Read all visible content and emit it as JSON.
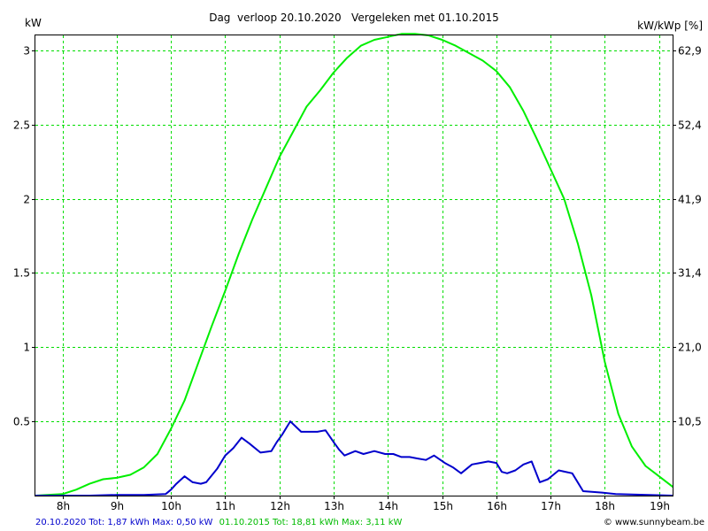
{
  "chart_data": {
    "type": "line",
    "title": "Dag  verloop 20.10.2020   Vergeleken met 01.10.2015",
    "ylabel_left": "kW",
    "ylabel_right": "kW/kWp [%]",
    "xlim": [
      7.5,
      19.25
    ],
    "ylim": [
      0,
      3.1
    ],
    "grid": true,
    "x_ticks": [
      8,
      9,
      10,
      11,
      12,
      13,
      14,
      15,
      16,
      17,
      18,
      19
    ],
    "x_tick_labels": [
      "8h",
      "9h",
      "10h",
      "11h",
      "12h",
      "13h",
      "14h",
      "15h",
      "16h",
      "17h",
      "18h",
      "19h"
    ],
    "y_ticks": [
      0.5,
      1,
      1.5,
      2,
      2.5,
      3
    ],
    "y_tick_labels": [
      "0.5",
      "1",
      "1.5",
      "2",
      "2.5",
      "3"
    ],
    "y_right_tick_labels": [
      "10,5",
      "21,0",
      "31,4",
      "41,9",
      "52,4",
      "62,9"
    ],
    "series": [
      {
        "name": "20.10.2020",
        "color": "#0000cc",
        "x": [
          7.5,
          8.5,
          9.0,
          9.5,
          9.9,
          10.0,
          10.1,
          10.25,
          10.4,
          10.55,
          10.65,
          10.85,
          11.0,
          11.15,
          11.3,
          11.45,
          11.65,
          11.85,
          11.95,
          12.05,
          12.2,
          12.4,
          12.6,
          12.7,
          12.85,
          13.0,
          13.1,
          13.2,
          13.4,
          13.55,
          13.75,
          13.95,
          14.1,
          14.25,
          14.4,
          14.55,
          14.7,
          14.85,
          15.05,
          15.2,
          15.35,
          15.55,
          15.7,
          15.85,
          16.0,
          16.1,
          16.2,
          16.35,
          16.5,
          16.65,
          16.8,
          16.95,
          17.15,
          17.4,
          17.6,
          17.95,
          18.2,
          19.25
        ],
        "y": [
          0,
          0,
          0.005,
          0.005,
          0.01,
          0.04,
          0.08,
          0.13,
          0.09,
          0.08,
          0.09,
          0.18,
          0.27,
          0.32,
          0.39,
          0.35,
          0.29,
          0.3,
          0.36,
          0.41,
          0.5,
          0.43,
          0.43,
          0.43,
          0.44,
          0.36,
          0.31,
          0.27,
          0.3,
          0.28,
          0.3,
          0.28,
          0.28,
          0.26,
          0.26,
          0.25,
          0.24,
          0.27,
          0.22,
          0.19,
          0.15,
          0.21,
          0.22,
          0.23,
          0.22,
          0.16,
          0.15,
          0.17,
          0.21,
          0.23,
          0.09,
          0.11,
          0.17,
          0.15,
          0.03,
          0.02,
          0.01,
          0
        ]
      },
      {
        "name": "01.10.2015",
        "color": "#00ee00",
        "x": [
          7.5,
          8.0,
          8.25,
          8.5,
          8.75,
          9.0,
          9.25,
          9.5,
          9.75,
          10.0,
          10.25,
          10.5,
          10.75,
          11.0,
          11.25,
          11.5,
          11.75,
          12.0,
          12.25,
          12.5,
          12.75,
          13.0,
          13.25,
          13.5,
          13.75,
          14.0,
          14.25,
          14.5,
          14.75,
          15.0,
          15.25,
          15.5,
          15.75,
          16.0,
          16.25,
          16.5,
          16.75,
          17.0,
          17.25,
          17.5,
          17.75,
          18.0,
          18.25,
          18.5,
          18.75,
          19.0,
          19.25
        ],
        "y": [
          0,
          0.01,
          0.04,
          0.08,
          0.11,
          0.12,
          0.14,
          0.19,
          0.28,
          0.45,
          0.64,
          0.89,
          1.14,
          1.38,
          1.63,
          1.86,
          2.07,
          2.28,
          2.45,
          2.62,
          2.73,
          2.85,
          2.95,
          3.03,
          3.07,
          3.09,
          3.11,
          3.11,
          3.1,
          3.07,
          3.03,
          2.98,
          2.93,
          2.86,
          2.75,
          2.59,
          2.4,
          2.2,
          2.0,
          1.7,
          1.35,
          0.9,
          0.55,
          0.33,
          0.2,
          0.13,
          0.06
        ]
      }
    ]
  },
  "footer": {
    "left_blue": "20.10.2020 Tot: 1,87 kWh Max: 0,50 kW",
    "left_green": "01.10.2015 Tot: 18,81 kWh Max: 3,11 kW",
    "right": "© www.sunnybeam.be"
  }
}
